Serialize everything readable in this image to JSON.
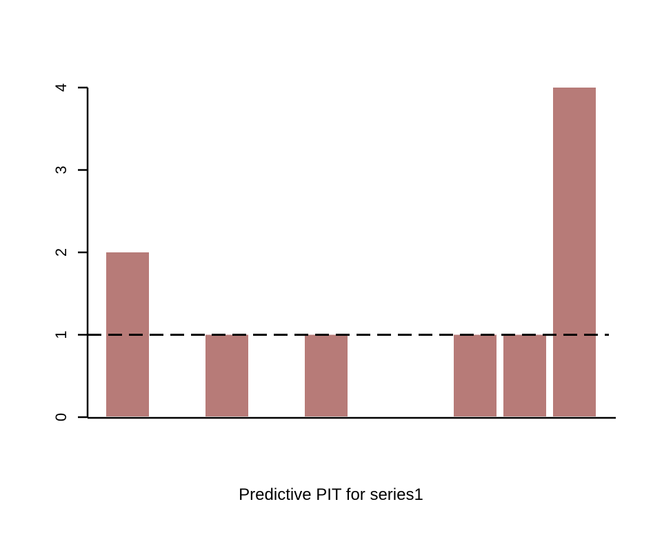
{
  "chart_data": {
    "type": "bar",
    "title": "",
    "xlabel": "Predictive PIT for series1",
    "ylabel": "",
    "bins": 10,
    "values": [
      2,
      0,
      1,
      0,
      1,
      0,
      0,
      1,
      1,
      4
    ],
    "ylim": [
      0,
      4
    ],
    "yticks": [
      "0",
      "1",
      "2",
      "3",
      "4"
    ],
    "reference_line": {
      "value": 1,
      "style": "dashed"
    },
    "bar_color": "#b77b78",
    "grid": false
  }
}
